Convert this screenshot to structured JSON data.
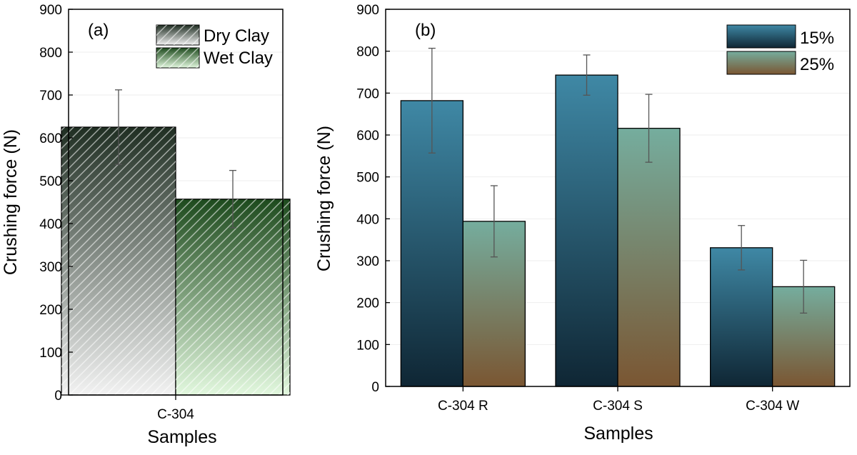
{
  "colors": {
    "dry_top": "#1f2e22",
    "dry_bottom": "#f2f2f2",
    "wet_top": "#1d4a1d",
    "wet_bottom": "#e2f8de",
    "blue_top": "#3f88a5",
    "blue_bottom": "#0f2634",
    "teal_top": "#75ad9e",
    "brown_bottom": "#7a5632",
    "errorbar": "#555555"
  },
  "chart_data": [
    {
      "id": "a",
      "type": "bar",
      "panel_label": "(a)",
      "title": "",
      "xlabel": "Samples",
      "ylabel": "Crushing force (N)",
      "ylim": [
        0,
        900
      ],
      "yticks": [
        0,
        100,
        200,
        300,
        400,
        500,
        600,
        700,
        800,
        900
      ],
      "categories": [
        "C-304"
      ],
      "legend_position": "top-right",
      "series": [
        {
          "name": "Dry Clay",
          "values": [
            625
          ],
          "errors": [
            87
          ]
        },
        {
          "name": "Wet Clay",
          "values": [
            457
          ],
          "errors": [
            67
          ]
        }
      ]
    },
    {
      "id": "b",
      "type": "bar",
      "panel_label": "(b)",
      "title": "",
      "xlabel": "Samples",
      "ylabel": "Crushing force (N)",
      "ylim": [
        0,
        900
      ],
      "yticks": [
        0,
        100,
        200,
        300,
        400,
        500,
        600,
        700,
        800,
        900
      ],
      "categories": [
        "C-304 R",
        "C-304 S",
        "C-304 W"
      ],
      "legend_position": "top-right",
      "series": [
        {
          "name": "15%",
          "values": [
            682,
            743,
            331
          ],
          "errors": [
            125,
            48,
            53
          ]
        },
        {
          "name": "25%",
          "values": [
            394,
            616,
            238
          ],
          "errors": [
            85,
            81,
            63
          ]
        }
      ]
    }
  ]
}
